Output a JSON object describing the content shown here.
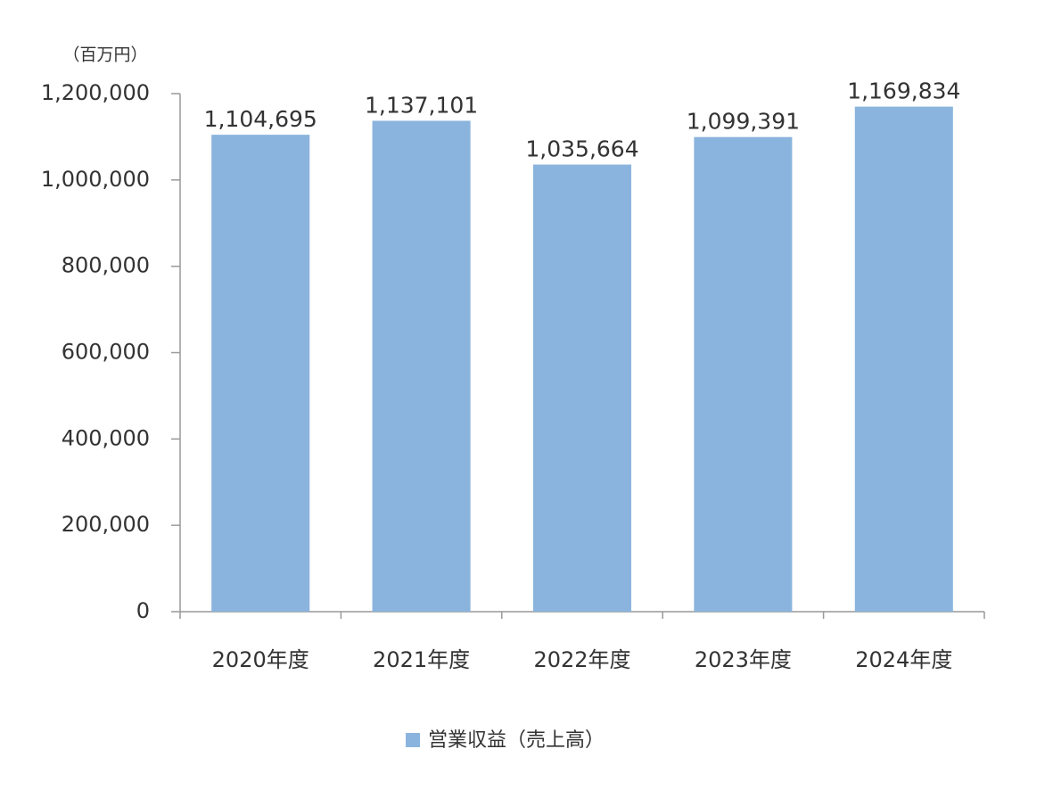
{
  "chart_data": {
    "type": "bar",
    "unit_label": "（百万円）",
    "categories": [
      "2020年度",
      "2021年度",
      "2022年度",
      "2023年度",
      "2024年度"
    ],
    "series": [
      {
        "name": "営業収益（売上高）",
        "color": "#8ab4dd",
        "values": [
          1104695,
          1137101,
          1035664,
          1099391,
          1169834
        ],
        "value_labels": [
          "1,104,695",
          "1,137,101",
          "1,035,664",
          "1,099,391",
          "1,169,834"
        ]
      }
    ],
    "ylim": [
      0,
      1200000
    ],
    "yticks": [
      0,
      {
        "value": 200000,
        "label": "200,000"
      },
      {
        "value": 400000,
        "label": "400,000"
      },
      {
        "value": 600000,
        "label": "600,000"
      },
      {
        "value": 800000,
        "label": "800,000"
      },
      {
        "value": 1000000,
        "label": "1,000,000"
      },
      {
        "value": 1200000,
        "label": "1,200,000"
      }
    ],
    "legend": "bottom"
  }
}
